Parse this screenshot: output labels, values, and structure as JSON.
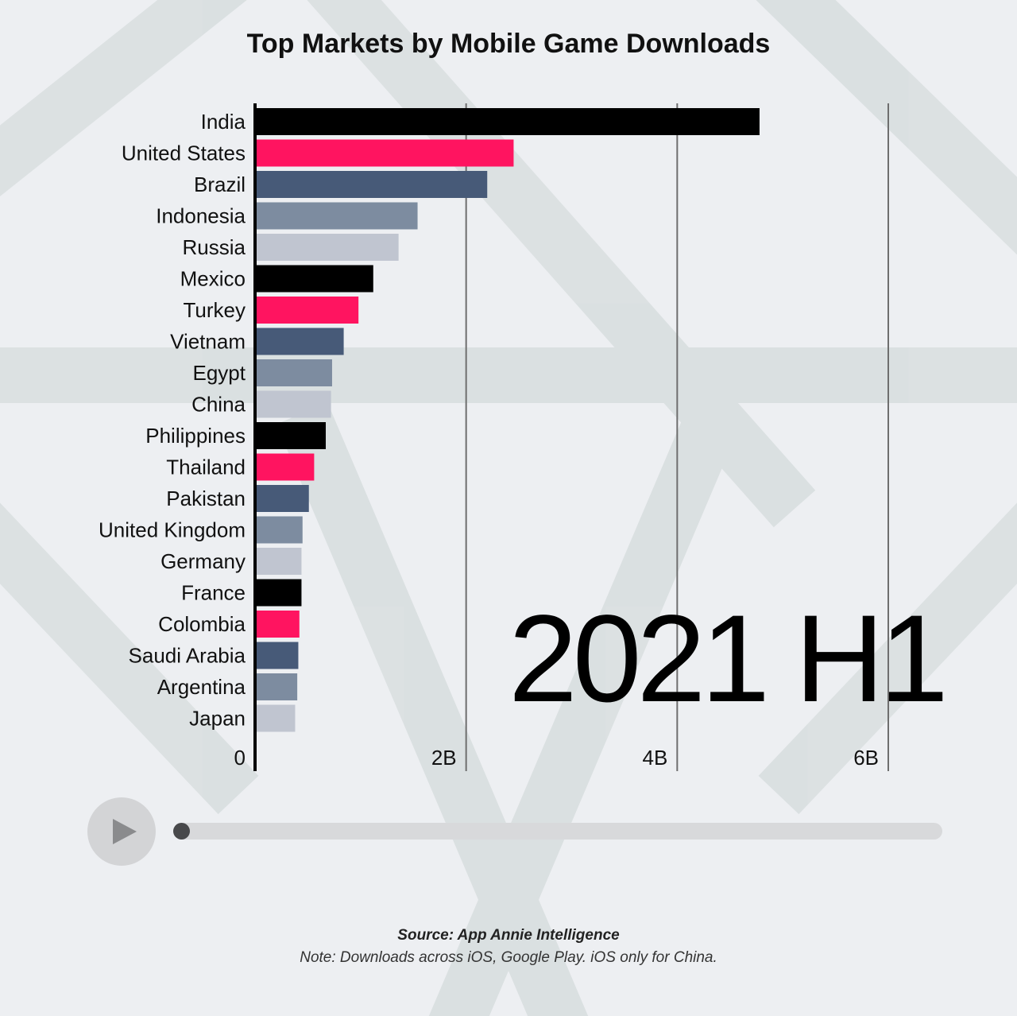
{
  "chart_data": {
    "type": "bar",
    "orientation": "horizontal",
    "title": "Top Markets by Mobile Game Downloads",
    "categories": [
      "India",
      "United States",
      "Brazil",
      "Indonesia",
      "Russia",
      "Mexico",
      "Turkey",
      "Vietnam",
      "Egypt",
      "China",
      "Philippines",
      "Thailand",
      "Pakistan",
      "United Kingdom",
      "Germany",
      "France",
      "Colombia",
      "Saudi Arabia",
      "Argentina",
      "Japan"
    ],
    "values": [
      4.78,
      2.45,
      2.2,
      1.54,
      1.36,
      1.12,
      0.98,
      0.84,
      0.73,
      0.72,
      0.67,
      0.56,
      0.51,
      0.45,
      0.44,
      0.44,
      0.42,
      0.41,
      0.4,
      0.38
    ],
    "bar_colors": [
      "#000000",
      "#ff1460",
      "#475a78",
      "#7d8ca0",
      "#c0c5d0",
      "#000000",
      "#ff1460",
      "#475a78",
      "#7d8ca0",
      "#c0c5d0",
      "#000000",
      "#ff1460",
      "#475a78",
      "#7d8ca0",
      "#c0c5d0",
      "#000000",
      "#ff1460",
      "#475a78",
      "#7d8ca0",
      "#c0c5d0"
    ],
    "xlim": [
      0,
      6.5
    ],
    "xticks": [
      0,
      2,
      4,
      6
    ],
    "xtick_labels": [
      "0",
      "2B",
      "4B",
      "6B"
    ],
    "grid": true,
    "period": "2021 H1"
  },
  "player": {
    "play_icon": "play-icon",
    "progress": 0
  },
  "footer": {
    "source": "Source: App Annie Intelligence",
    "note": "Note: Downloads across iOS, Google Play. iOS only for China."
  },
  "colors": {
    "background": "#edeff2",
    "watermark": "#d9dfe0",
    "axis": "#000000",
    "grid": "#6e6e6e"
  }
}
